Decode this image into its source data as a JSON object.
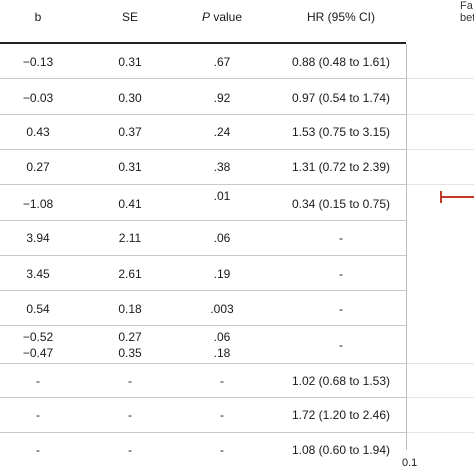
{
  "header": {
    "b": "b",
    "se": "SE",
    "p_italic": "P",
    "p_rest": " value",
    "hr": "HR (95% CI)",
    "plot_partial_1": "Fa",
    "plot_partial_2": "bet"
  },
  "rows": [
    {
      "b": "−0.13",
      "se": "0.31",
      "p": ".67",
      "hr": "0.88 (0.48 to 1.61)"
    },
    {
      "b": "−0.03",
      "se": "0.30",
      "p": ".92",
      "hr": "0.97 (0.54 to 1.74)"
    },
    {
      "b": "0.43",
      "se": "0.37",
      "p": ".24",
      "hr": "1.53 (0.75 to 3.15)"
    },
    {
      "b": "0.27",
      "se": "0.31",
      "p": ".38",
      "hr": "1.31 (0.72 to 2.39)"
    },
    {
      "b": "−1.08",
      "se": "0.41",
      "p": ".01",
      "hr": "0.34 (0.15 to 0.75)"
    },
    {
      "b": "3.94",
      "se": "2.11",
      "p": ".06",
      "hr": "-"
    },
    {
      "b": "3.45",
      "se": "2.61",
      "p": ".19",
      "hr": "-"
    },
    {
      "b": "0.54",
      "se": "0.18",
      "p": ".003",
      "hr": "-"
    },
    {
      "b": "−0.52",
      "b2": "−0.47",
      "se": "0.27",
      "se2": "0.35",
      "p": ".06",
      "p2": ".18",
      "hr": "-"
    },
    {
      "b": "-",
      "se": "-",
      "p": "-",
      "hr": "1.02 (0.68 to 1.53)"
    },
    {
      "b": "-",
      "se": "-",
      "p": "-",
      "hr": "1.72 (1.20 to 2.46)"
    },
    {
      "b": "-",
      "se": "-",
      "p": "-",
      "hr": "1.08 (0.60 to 1.94)"
    }
  ],
  "axis": {
    "tick_label": "0.1"
  },
  "colors": {
    "ci_marker": "#c0392b"
  }
}
